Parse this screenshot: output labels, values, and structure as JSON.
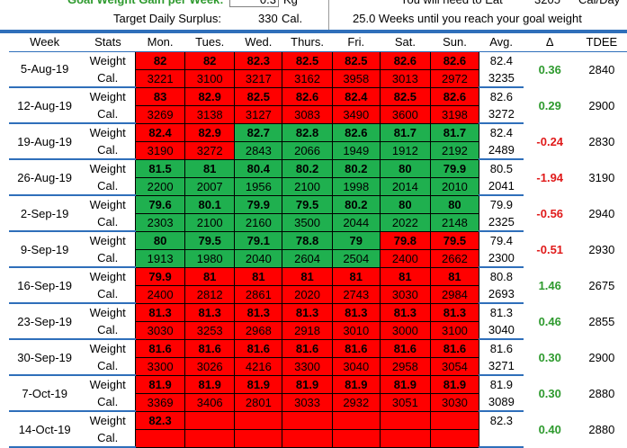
{
  "summary": {
    "goal_label": "Goal Weight Gain per Week:",
    "goal_value": "0.3",
    "goal_unit": "Kg",
    "surplus_label": "Target Daily Surplus:",
    "surplus_value": "330",
    "surplus_unit": "Cal.",
    "eat_label": "You will need to Eat",
    "eat_value": "3205",
    "eat_unit": "Cal/Day",
    "weeks_text": "25.0 Weeks until you reach your goal weight"
  },
  "headers": [
    "Week",
    "Stats",
    "Mon.",
    "Tues.",
    "Wed.",
    "Thurs.",
    "Fri.",
    "Sat.",
    "Sun.",
    "Avg.",
    "Δ",
    "TDEE"
  ],
  "stat_labels": {
    "weight": "Weight",
    "cal": "Cal."
  },
  "colors": {
    "red": "#ff0000",
    "green": "#1fb04f",
    "accent": "#2f6fba"
  },
  "weeks": [
    {
      "week": "5-Aug-19",
      "weight": [
        [
          "82",
          "red"
        ],
        [
          "82",
          "red"
        ],
        [
          "82.3",
          "red"
        ],
        [
          "82.5",
          "red"
        ],
        [
          "82.5",
          "red"
        ],
        [
          "82.6",
          "red"
        ],
        [
          "82.6",
          "red"
        ]
      ],
      "cal": [
        [
          "3221",
          "red"
        ],
        [
          "3100",
          "red"
        ],
        [
          "3217",
          "red"
        ],
        [
          "3162",
          "red"
        ],
        [
          "3958",
          "red"
        ],
        [
          "3013",
          "red"
        ],
        [
          "2972",
          "red"
        ]
      ],
      "avg_weight": "82.4",
      "avg_cal": "3235",
      "delta": "0.36",
      "tdee": "2840"
    },
    {
      "week": "12-Aug-19",
      "weight": [
        [
          "83",
          "red"
        ],
        [
          "82.9",
          "red"
        ],
        [
          "82.5",
          "red"
        ],
        [
          "82.6",
          "red"
        ],
        [
          "82.4",
          "red"
        ],
        [
          "82.5",
          "red"
        ],
        [
          "82.6",
          "red"
        ]
      ],
      "cal": [
        [
          "3269",
          "red"
        ],
        [
          "3138",
          "red"
        ],
        [
          "3127",
          "red"
        ],
        [
          "3083",
          "red"
        ],
        [
          "3490",
          "red"
        ],
        [
          "3600",
          "red"
        ],
        [
          "3198",
          "red"
        ]
      ],
      "avg_weight": "82.6",
      "avg_cal": "3272",
      "delta": "0.29",
      "tdee": "2900"
    },
    {
      "week": "19-Aug-19",
      "weight": [
        [
          "82.4",
          "red"
        ],
        [
          "82.9",
          "red"
        ],
        [
          "82.7",
          "green"
        ],
        [
          "82.8",
          "green"
        ],
        [
          "82.6",
          "green"
        ],
        [
          "81.7",
          "green"
        ],
        [
          "81.7",
          "green"
        ]
      ],
      "cal": [
        [
          "3190",
          "red"
        ],
        [
          "3272",
          "red"
        ],
        [
          "2843",
          "green"
        ],
        [
          "2066",
          "green"
        ],
        [
          "1949",
          "green"
        ],
        [
          "1912",
          "green"
        ],
        [
          "2192",
          "green"
        ]
      ],
      "avg_weight": "82.4",
      "avg_cal": "2489",
      "delta": "-0.24",
      "tdee": "2830"
    },
    {
      "week": "26-Aug-19",
      "weight": [
        [
          "81.5",
          "green"
        ],
        [
          "81",
          "green"
        ],
        [
          "80.4",
          "green"
        ],
        [
          "80.2",
          "green"
        ],
        [
          "80.2",
          "green"
        ],
        [
          "80",
          "green"
        ],
        [
          "79.9",
          "green"
        ]
      ],
      "cal": [
        [
          "2200",
          "green"
        ],
        [
          "2007",
          "green"
        ],
        [
          "1956",
          "green"
        ],
        [
          "2100",
          "green"
        ],
        [
          "1998",
          "green"
        ],
        [
          "2014",
          "green"
        ],
        [
          "2010",
          "green"
        ]
      ],
      "avg_weight": "80.5",
      "avg_cal": "2041",
      "delta": "-1.94",
      "tdee": "3190"
    },
    {
      "week": "2-Sep-19",
      "weight": [
        [
          "79.6",
          "green"
        ],
        [
          "80.1",
          "green"
        ],
        [
          "79.9",
          "green"
        ],
        [
          "79.5",
          "green"
        ],
        [
          "80.2",
          "green"
        ],
        [
          "80",
          "green"
        ],
        [
          "80",
          "green"
        ]
      ],
      "cal": [
        [
          "2303",
          "green"
        ],
        [
          "2100",
          "green"
        ],
        [
          "2160",
          "green"
        ],
        [
          "3500",
          "green"
        ],
        [
          "2044",
          "green"
        ],
        [
          "2022",
          "green"
        ],
        [
          "2148",
          "green"
        ]
      ],
      "avg_weight": "79.9",
      "avg_cal": "2325",
      "delta": "-0.56",
      "tdee": "2940"
    },
    {
      "week": "9-Sep-19",
      "weight": [
        [
          "80",
          "green"
        ],
        [
          "79.5",
          "green"
        ],
        [
          "79.1",
          "green"
        ],
        [
          "78.8",
          "green"
        ],
        [
          "79",
          "green"
        ],
        [
          "79.8",
          "red"
        ],
        [
          "79.5",
          "red"
        ]
      ],
      "cal": [
        [
          "1913",
          "green"
        ],
        [
          "1980",
          "green"
        ],
        [
          "2040",
          "green"
        ],
        [
          "2604",
          "green"
        ],
        [
          "2504",
          "green"
        ],
        [
          "2400",
          "red"
        ],
        [
          "2662",
          "red"
        ]
      ],
      "avg_weight": "79.4",
      "avg_cal": "2300",
      "delta": "-0.51",
      "tdee": "2930"
    },
    {
      "week": "16-Sep-19",
      "weight": [
        [
          "79.9",
          "red"
        ],
        [
          "81",
          "red"
        ],
        [
          "81",
          "red"
        ],
        [
          "81",
          "red"
        ],
        [
          "81",
          "red"
        ],
        [
          "81",
          "red"
        ],
        [
          "81",
          "red"
        ]
      ],
      "cal": [
        [
          "2400",
          "red"
        ],
        [
          "2812",
          "red"
        ],
        [
          "2861",
          "red"
        ],
        [
          "2020",
          "red"
        ],
        [
          "2743",
          "red"
        ],
        [
          "3030",
          "red"
        ],
        [
          "2984",
          "red"
        ]
      ],
      "avg_weight": "80.8",
      "avg_cal": "2693",
      "delta": "1.46",
      "tdee": "2675"
    },
    {
      "week": "23-Sep-19",
      "weight": [
        [
          "81.3",
          "red"
        ],
        [
          "81.3",
          "red"
        ],
        [
          "81.3",
          "red"
        ],
        [
          "81.3",
          "red"
        ],
        [
          "81.3",
          "red"
        ],
        [
          "81.3",
          "red"
        ],
        [
          "81.3",
          "red"
        ]
      ],
      "cal": [
        [
          "3030",
          "red"
        ],
        [
          "3253",
          "red"
        ],
        [
          "2968",
          "red"
        ],
        [
          "2918",
          "red"
        ],
        [
          "3010",
          "red"
        ],
        [
          "3000",
          "red"
        ],
        [
          "3100",
          "red"
        ]
      ],
      "avg_weight": "81.3",
      "avg_cal": "3040",
      "delta": "0.46",
      "tdee": "2855"
    },
    {
      "week": "30-Sep-19",
      "weight": [
        [
          "81.6",
          "red"
        ],
        [
          "81.6",
          "red"
        ],
        [
          "81.6",
          "red"
        ],
        [
          "81.6",
          "red"
        ],
        [
          "81.6",
          "red"
        ],
        [
          "81.6",
          "red"
        ],
        [
          "81.6",
          "red"
        ]
      ],
      "cal": [
        [
          "3300",
          "red"
        ],
        [
          "3026",
          "red"
        ],
        [
          "4216",
          "red"
        ],
        [
          "3300",
          "red"
        ],
        [
          "3040",
          "red"
        ],
        [
          "2958",
          "red"
        ],
        [
          "3054",
          "red"
        ]
      ],
      "avg_weight": "81.6",
      "avg_cal": "3271",
      "delta": "0.30",
      "tdee": "2900"
    },
    {
      "week": "7-Oct-19",
      "weight": [
        [
          "81.9",
          "red"
        ],
        [
          "81.9",
          "red"
        ],
        [
          "81.9",
          "red"
        ],
        [
          "81.9",
          "red"
        ],
        [
          "81.9",
          "red"
        ],
        [
          "81.9",
          "red"
        ],
        [
          "81.9",
          "red"
        ]
      ],
      "cal": [
        [
          "3369",
          "red"
        ],
        [
          "3406",
          "red"
        ],
        [
          "2801",
          "red"
        ],
        [
          "3033",
          "red"
        ],
        [
          "2932",
          "red"
        ],
        [
          "3051",
          "red"
        ],
        [
          "3030",
          "red"
        ]
      ],
      "avg_weight": "81.9",
      "avg_cal": "3089",
      "delta": "0.30",
      "tdee": "2880"
    },
    {
      "week": "14-Oct-19",
      "weight": [
        [
          "82.3",
          "red"
        ],
        [
          "",
          "red"
        ],
        [
          "",
          "red"
        ],
        [
          "",
          "red"
        ],
        [
          "",
          "red"
        ],
        [
          "",
          "red"
        ],
        [
          "",
          "red"
        ]
      ],
      "cal": [
        [
          "",
          "red"
        ],
        [
          "",
          "red"
        ],
        [
          "",
          "red"
        ],
        [
          "",
          "red"
        ],
        [
          "",
          "red"
        ],
        [
          "",
          "red"
        ],
        [
          "",
          "red"
        ]
      ],
      "avg_weight": "82.3",
      "avg_cal": "",
      "delta": "0.40",
      "tdee": "2880"
    }
  ]
}
